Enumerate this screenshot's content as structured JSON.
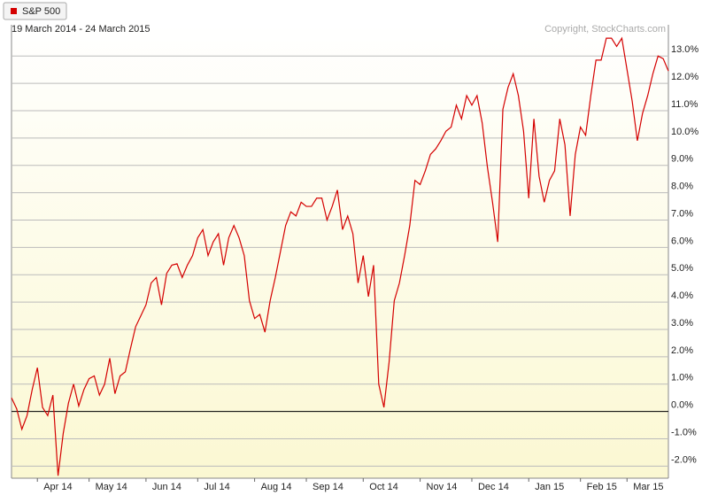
{
  "chart_data": {
    "type": "line",
    "subtitle": "19 March 2014 - 24 March 2015",
    "copyright": "Copyright, StockCharts.com",
    "categories": [
      null,
      null,
      null,
      null,
      null,
      "Apr 14",
      null,
      null,
      null,
      null,
      null,
      null,
      null,
      null,
      null,
      "May 14",
      null,
      null,
      null,
      null,
      null,
      null,
      null,
      null,
      null,
      null,
      "Jun 14",
      null,
      null,
      null,
      null,
      null,
      null,
      null,
      null,
      null,
      "Jul 14",
      null,
      null,
      null,
      null,
      null,
      null,
      null,
      null,
      null,
      null,
      "Aug 14",
      null,
      null,
      null,
      null,
      null,
      null,
      null,
      null,
      null,
      "Sep 14",
      null,
      null,
      null,
      null,
      null,
      null,
      null,
      null,
      null,
      null,
      "Oct 14",
      null,
      null,
      null,
      null,
      null,
      null,
      null,
      null,
      null,
      null,
      "Nov 14",
      null,
      null,
      null,
      null,
      null,
      null,
      null,
      null,
      null,
      "Dec 14",
      null,
      null,
      null,
      null,
      null,
      null,
      null,
      null,
      null,
      null,
      "Jan 15",
      null,
      null,
      null,
      null,
      null,
      null,
      null,
      null,
      null,
      "Feb 15",
      null,
      null,
      null,
      null,
      null,
      null,
      null,
      null,
      "Mar 15",
      null,
      null,
      null,
      null,
      null,
      null,
      null,
      null
    ],
    "series": [
      {
        "name": "S&P 500",
        "color": "#d40000",
        "values": [
          0.5,
          0.1,
          -0.65,
          -0.15,
          0.8,
          1.6,
          0.15,
          -0.15,
          0.6,
          -2.35,
          -0.8,
          0.3,
          1.0,
          0.2,
          0.8,
          1.2,
          1.3,
          0.6,
          1.0,
          1.95,
          0.65,
          1.3,
          1.45,
          2.3,
          3.1,
          3.5,
          3.9,
          4.7,
          4.9,
          3.9,
          5.05,
          5.35,
          5.4,
          4.9,
          5.35,
          5.7,
          6.35,
          6.65,
          5.7,
          6.2,
          6.5,
          5.35,
          6.35,
          6.8,
          6.35,
          5.7,
          4.05,
          3.4,
          3.55,
          2.9,
          4.05,
          4.9,
          5.85,
          6.8,
          7.3,
          7.15,
          7.65,
          7.5,
          7.5,
          7.8,
          7.8,
          7.0,
          7.5,
          8.1,
          6.65,
          7.15,
          6.5,
          4.7,
          5.7,
          4.2,
          5.35,
          1.0,
          0.15,
          1.8,
          4.05,
          4.7,
          5.7,
          6.8,
          8.45,
          8.3,
          8.8,
          9.4,
          9.6,
          9.9,
          10.25,
          10.4,
          11.2,
          10.7,
          11.55,
          11.2,
          11.55,
          10.55,
          8.95,
          7.65,
          6.2,
          11.05,
          11.85,
          12.35,
          11.55,
          10.25,
          7.8,
          10.7,
          8.6,
          7.65,
          8.45,
          8.8,
          10.7,
          9.75,
          7.15,
          9.4,
          10.4,
          10.1,
          11.55,
          12.85,
          12.85,
          13.65,
          13.65,
          13.35,
          13.65,
          12.5,
          11.35,
          9.9,
          10.9,
          11.55,
          12.35,
          13.0,
          12.9,
          12.45
        ]
      }
    ],
    "ylim": [
      -2.44,
      14.14
    ],
    "yticks": [
      {
        "value": -2,
        "label": "-2.0%"
      },
      {
        "value": -1,
        "label": "-1.0%"
      },
      {
        "value": 0,
        "label": "0.0%"
      },
      {
        "value": 1,
        "label": "1.0%"
      },
      {
        "value": 2,
        "label": "2.0%"
      },
      {
        "value": 3,
        "label": "3.0%"
      },
      {
        "value": 4,
        "label": "4.0%"
      },
      {
        "value": 5,
        "label": "5.0%"
      },
      {
        "value": 6,
        "label": "6.0%"
      },
      {
        "value": 7,
        "label": "7.0%"
      },
      {
        "value": 8,
        "label": "8.0%"
      },
      {
        "value": 9,
        "label": "9.0%"
      },
      {
        "value": 10,
        "label": "10.0%"
      },
      {
        "value": 11,
        "label": "11.0%"
      },
      {
        "value": 12,
        "label": "12.0%"
      },
      {
        "value": 13,
        "label": "13.0%"
      }
    ],
    "grid": true
  }
}
